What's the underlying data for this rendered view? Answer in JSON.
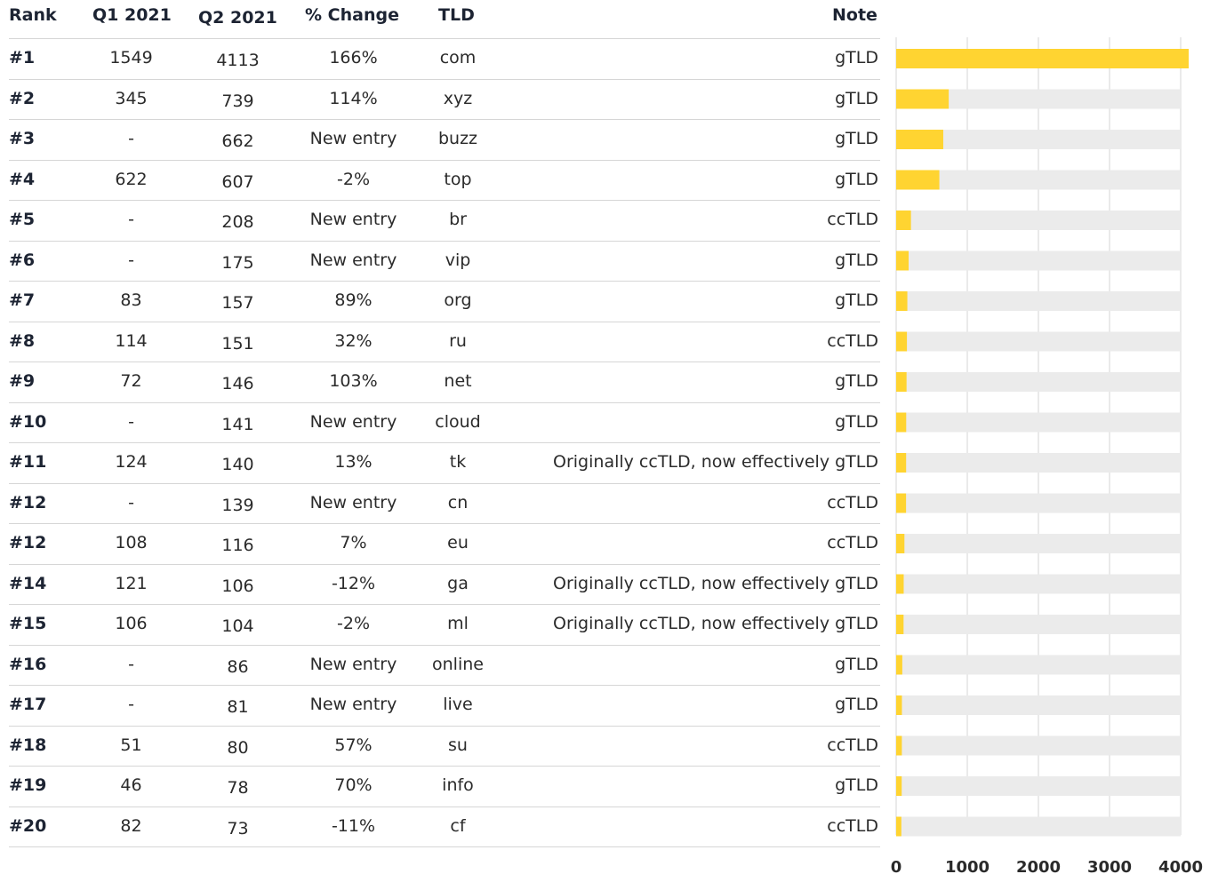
{
  "headers": {
    "rank": "Rank",
    "q1": "Q1 2021",
    "q2": "Q2 2021",
    "change": "% Change",
    "tld": "TLD",
    "note": "Note"
  },
  "rows": [
    {
      "rank": "#1",
      "q1": "1549",
      "q2": "4113",
      "change": "166%",
      "tld": "com",
      "note": "gTLD"
    },
    {
      "rank": "#2",
      "q1": "345",
      "q2": "739",
      "change": "114%",
      "tld": "xyz",
      "note": "gTLD"
    },
    {
      "rank": "#3",
      "q1": "-",
      "q2": "662",
      "change": "New entry",
      "tld": "buzz",
      "note": "gTLD"
    },
    {
      "rank": "#4",
      "q1": "622",
      "q2": "607",
      "change": "-2%",
      "tld": "top",
      "note": "gTLD"
    },
    {
      "rank": "#5",
      "q1": "-",
      "q2": "208",
      "change": "New entry",
      "tld": "br",
      "note": "ccTLD"
    },
    {
      "rank": "#6",
      "q1": "-",
      "q2": "175",
      "change": "New entry",
      "tld": "vip",
      "note": "gTLD"
    },
    {
      "rank": "#7",
      "q1": "83",
      "q2": "157",
      "change": "89%",
      "tld": "org",
      "note": "gTLD"
    },
    {
      "rank": "#8",
      "q1": "114",
      "q2": "151",
      "change": "32%",
      "tld": "ru",
      "note": "ccTLD"
    },
    {
      "rank": "#9",
      "q1": "72",
      "q2": "146",
      "change": "103%",
      "tld": "net",
      "note": "gTLD"
    },
    {
      "rank": "#10",
      "q1": "-",
      "q2": "141",
      "change": "New entry",
      "tld": "cloud",
      "note": "gTLD"
    },
    {
      "rank": "#11",
      "q1": "124",
      "q2": "140",
      "change": "13%",
      "tld": "tk",
      "note": "Originally ccTLD, now effectively gTLD"
    },
    {
      "rank": "#12",
      "q1": "-",
      "q2": "139",
      "change": "New entry",
      "tld": "cn",
      "note": "ccTLD"
    },
    {
      "rank": "#12",
      "q1": "108",
      "q2": "116",
      "change": "7%",
      "tld": "eu",
      "note": "ccTLD"
    },
    {
      "rank": "#14",
      "q1": "121",
      "q2": "106",
      "change": "-12%",
      "tld": "ga",
      "note": "Originally ccTLD, now effectively gTLD"
    },
    {
      "rank": "#15",
      "q1": "106",
      "q2": "104",
      "change": "-2%",
      "tld": "ml",
      "note": "Originally ccTLD, now effectively gTLD"
    },
    {
      "rank": "#16",
      "q1": "-",
      "q2": "86",
      "change": "New entry",
      "tld": "online",
      "note": "gTLD"
    },
    {
      "rank": "#17",
      "q1": "-",
      "q2": "81",
      "change": "New entry",
      "tld": "live",
      "note": "gTLD"
    },
    {
      "rank": "#18",
      "q1": "51",
      "q2": "80",
      "change": "57%",
      "tld": "su",
      "note": "ccTLD"
    },
    {
      "rank": "#19",
      "q1": "46",
      "q2": "78",
      "change": "70%",
      "tld": "info",
      "note": "gTLD"
    },
    {
      "rank": "#20",
      "q1": "82",
      "q2": "73",
      "change": "-11%",
      "tld": "cf",
      "note": "ccTLD"
    }
  ],
  "chart_data": {
    "type": "bar",
    "orientation": "horizontal",
    "categories": [
      "com",
      "xyz",
      "buzz",
      "top",
      "br",
      "vip",
      "org",
      "ru",
      "net",
      "cloud",
      "tk",
      "cn",
      "eu",
      "ga",
      "ml",
      "online",
      "live",
      "su",
      "info",
      "cf"
    ],
    "values": [
      4113,
      739,
      662,
      607,
      208,
      175,
      157,
      151,
      146,
      141,
      140,
      139,
      116,
      106,
      104,
      86,
      81,
      80,
      78,
      73
    ],
    "xlim": [
      0,
      4000
    ],
    "ticks": [
      "0",
      "1000",
      "2000",
      "3000",
      "4000"
    ],
    "tick_values": [
      0,
      1000,
      2000,
      3000,
      4000
    ],
    "grid": true,
    "colors": {
      "bar": "#ffd431",
      "track": "#ebebeb",
      "grid": "#d4d4d4",
      "tick_text": "#2a2a2a"
    }
  }
}
